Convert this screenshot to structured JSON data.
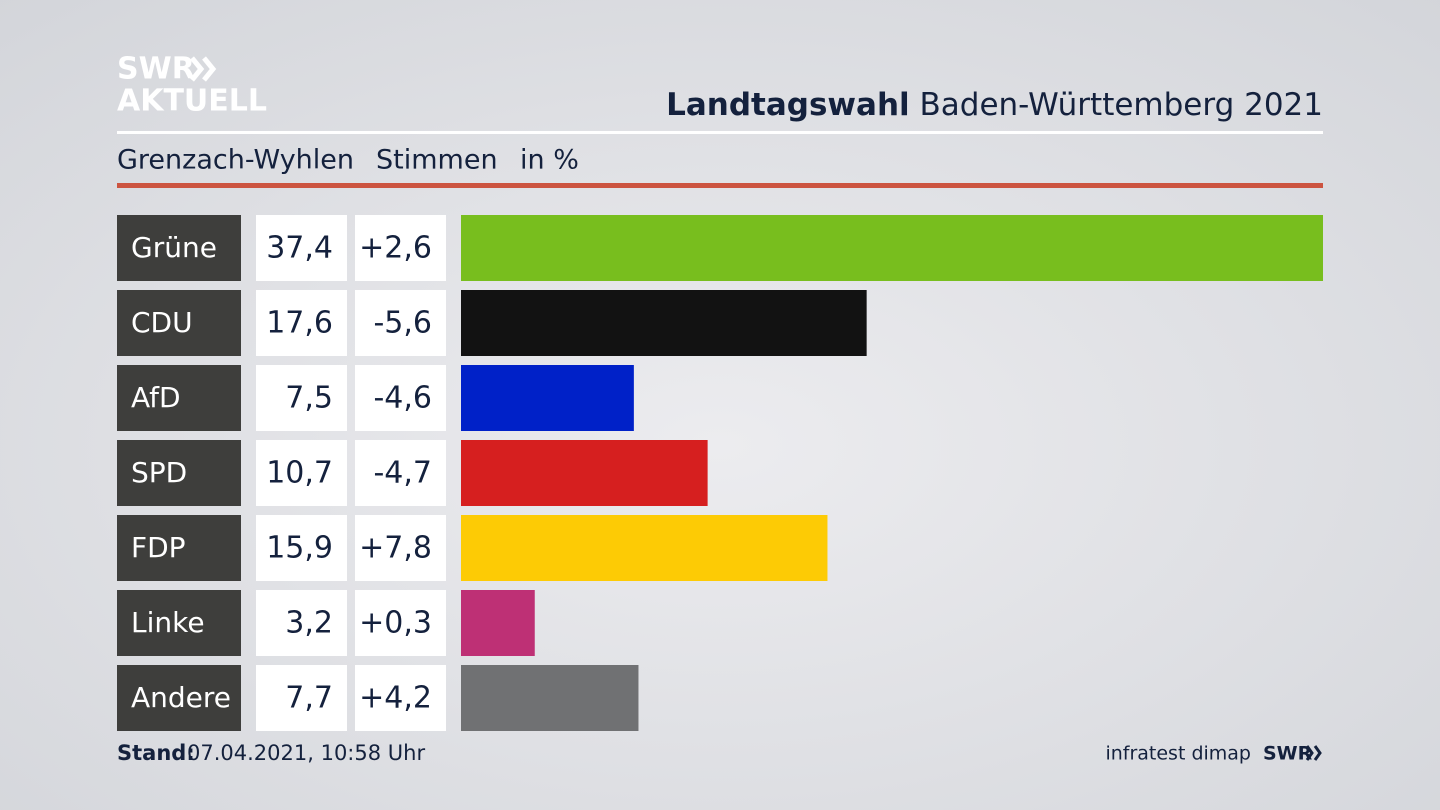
{
  "header": {
    "logo_top": "SWR",
    "logo_bottom": "AKTUELL"
  },
  "chart_data": {
    "type": "bar",
    "orientation": "horizontal",
    "title": "Landtagswahl",
    "subtitle": "Baden-Württemberg 2021",
    "region": "Grenzach-Wyhlen",
    "measure": "Stimmen",
    "unit": "in %",
    "categories": [
      "Grüne",
      "CDU",
      "AfD",
      "SPD",
      "FDP",
      "Linke",
      "Andere"
    ],
    "values": [
      37.4,
      17.6,
      7.5,
      10.7,
      15.9,
      3.2,
      7.7
    ],
    "value_labels": [
      "37,4",
      "17,6",
      "7,5",
      "10,7",
      "15,9",
      "3,2",
      "7,7"
    ],
    "changes": [
      2.6,
      -5.6,
      -4.6,
      -4.7,
      7.8,
      0.3,
      4.2
    ],
    "change_labels": [
      "+2,6",
      "-5,6",
      "-4,6",
      "-4,7",
      "+7,8",
      "+0,3",
      "+4,2"
    ],
    "colors": [
      "#78be1e",
      "#121212",
      "#0021c8",
      "#d61f1f",
      "#fdcb05",
      "#be3075",
      "#707173"
    ],
    "xlim": [
      0,
      37.4
    ]
  },
  "footer": {
    "stand_label": "Stand:",
    "stand": "07.04.2021, 10:58 Uhr",
    "source": "infratest dimap",
    "logo": "SWR"
  }
}
